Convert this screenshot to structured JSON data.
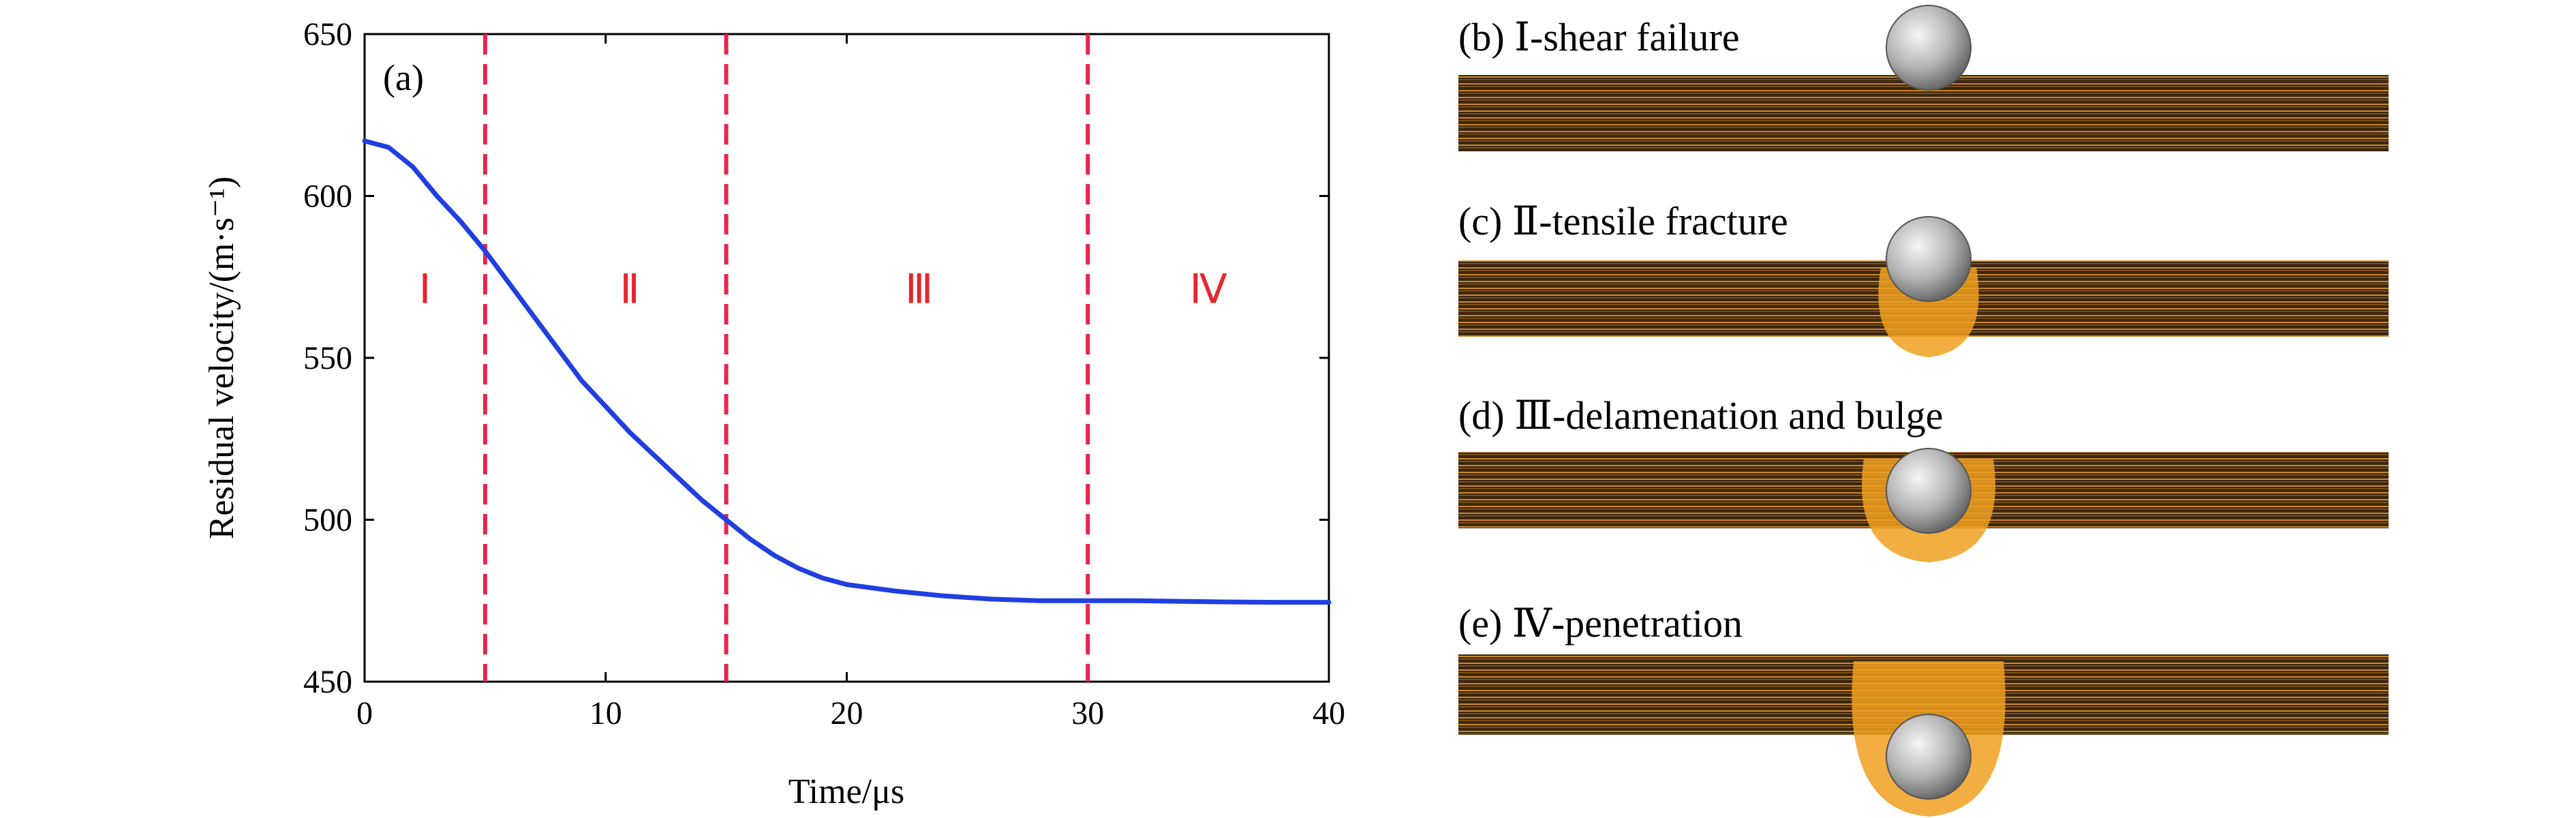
{
  "chart_data": {
    "type": "line",
    "panel_label": "(a)",
    "xlabel": "Time/μs",
    "ylabel": "Residual velocity/(m·s⁻¹)",
    "xlim": [
      0,
      40
    ],
    "ylim": [
      450,
      650
    ],
    "xticks": [
      0,
      10,
      20,
      30,
      40
    ],
    "yticks": [
      450,
      500,
      550,
      600,
      650
    ],
    "series": [
      {
        "color": "#1f3fe0",
        "x": [
          0,
          1,
          2,
          3,
          4,
          5,
          6,
          7,
          8,
          9,
          10,
          11,
          12,
          13,
          14,
          15,
          16,
          17,
          18,
          19,
          20,
          22,
          24,
          26,
          28,
          30,
          32,
          34,
          36,
          38,
          40
        ],
        "y": [
          617,
          615,
          609,
          600,
          592,
          583,
          573,
          563,
          553,
          543,
          535,
          527,
          520,
          513,
          506,
          500,
          494,
          489,
          485,
          482,
          480,
          478,
          476.5,
          475.5,
          475,
          475,
          475,
          474.8,
          474.6,
          474.5,
          474.5
        ]
      }
    ],
    "phase_boundaries": [
      5,
      15,
      30
    ],
    "phase_boundary_color": "#e8244c",
    "phases": [
      {
        "label": "Ⅰ",
        "x": 2.5
      },
      {
        "label": "Ⅱ",
        "x": 11
      },
      {
        "label": "Ⅲ",
        "x": 23
      },
      {
        "label": "Ⅳ",
        "x": 35
      }
    ],
    "phase_label_y": 567,
    "phase_label_color": "#e8242c",
    "grid": false
  },
  "panels": [
    {
      "caption": "(b) Ⅰ-shear failure",
      "stage": "shear"
    },
    {
      "caption": "(c) Ⅱ-tensile fracture",
      "stage": "tensile"
    },
    {
      "caption": "(d) Ⅲ-delamenation and bulge",
      "stage": "bulge"
    },
    {
      "caption": "(e) Ⅳ-penetration",
      "stage": "penetration"
    }
  ],
  "colors": {
    "laminate_dark": "#3a2410",
    "laminate_light": "#c98a2a",
    "damage": "#f0a020",
    "sphere_light": "#f4f4f4",
    "sphere_dark": "#6e6e6e"
  }
}
